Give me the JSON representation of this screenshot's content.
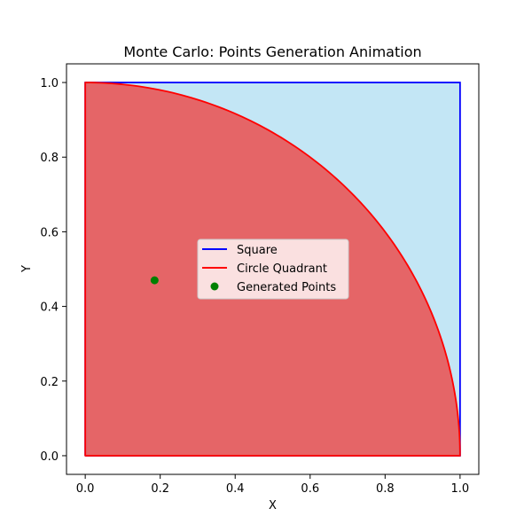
{
  "chart_data": {
    "type": "scatter",
    "title": "Monte Carlo: Points Generation Animation",
    "xlabel": "X",
    "ylabel": "Y",
    "xlim": [
      -0.05,
      1.05
    ],
    "ylim": [
      -0.05,
      1.05
    ],
    "xticks": [
      0.0,
      0.2,
      0.4,
      0.6,
      0.8,
      1.0
    ],
    "yticks": [
      0.0,
      0.2,
      0.4,
      0.6,
      0.8,
      1.0
    ],
    "xtick_labels": [
      "0.0",
      "0.2",
      "0.4",
      "0.6",
      "0.8",
      "1.0"
    ],
    "ytick_labels": [
      "0.0",
      "0.2",
      "0.4",
      "0.6",
      "0.8",
      "1.0"
    ],
    "grid": false,
    "legend_position": "center",
    "series": [
      {
        "name": "Square",
        "kind": "line",
        "color": "#0000ff",
        "fill": "#87ceeb",
        "x": [
          0,
          1,
          1,
          0,
          0
        ],
        "y": [
          0,
          0,
          1,
          1,
          0
        ]
      },
      {
        "name": "Circle Quadrant",
        "kind": "line",
        "color": "#ff0000",
        "fill": "#f08080",
        "radius": 1,
        "center": [
          0,
          0
        ]
      },
      {
        "name": "Generated Points",
        "kind": "scatter",
        "color": "#008000",
        "x": [
          0.185
        ],
        "y": [
          0.47
        ]
      }
    ]
  }
}
